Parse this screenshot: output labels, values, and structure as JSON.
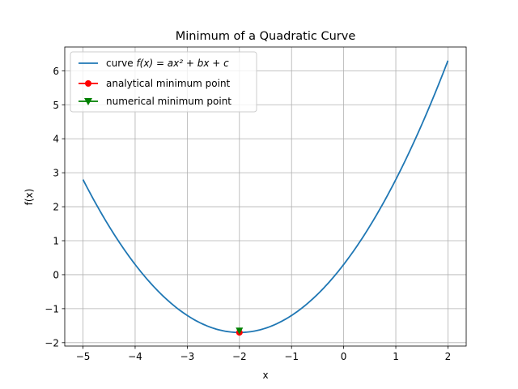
{
  "chart_data": {
    "type": "line",
    "title": "Minimum of a Quadratic Curve",
    "xlabel": "x",
    "ylabel": "f(x)",
    "xlim": [
      -5.35,
      2.35
    ],
    "ylim": [
      -2.1,
      6.7
    ],
    "grid": true,
    "legend_position": "upper left",
    "x_ticks": [
      -5,
      -4,
      -3,
      -2,
      -1,
      0,
      1,
      2
    ],
    "y_ticks": [
      -2,
      -1,
      0,
      1,
      2,
      3,
      4,
      5,
      6
    ],
    "x_tick_labels": [
      "−5",
      "−4",
      "−3",
      "−2",
      "−1",
      "0",
      "1",
      "2"
    ],
    "y_tick_labels": [
      "−2",
      "−1",
      "0",
      "1",
      "2",
      "3",
      "4",
      "5",
      "6"
    ],
    "colors": {
      "curve": "#1f77b4",
      "analytical": "#ff0000",
      "numerical": "#008000"
    },
    "curve": {
      "legend_prefix": "curve ",
      "legend_formula": "f(x) = ax² + bx + c",
      "coefficients": {
        "a": 0.5,
        "b": 2.0,
        "c": 0.3
      },
      "x_range": [
        -5,
        2
      ]
    },
    "analytical_min": {
      "name": "analytical minimum point",
      "x": -2.0,
      "y": -1.7,
      "marker": "circle"
    },
    "numerical_min": {
      "name": "numerical minimum point",
      "x": -2.0,
      "y": -1.7,
      "marker": "triangle-down"
    }
  }
}
